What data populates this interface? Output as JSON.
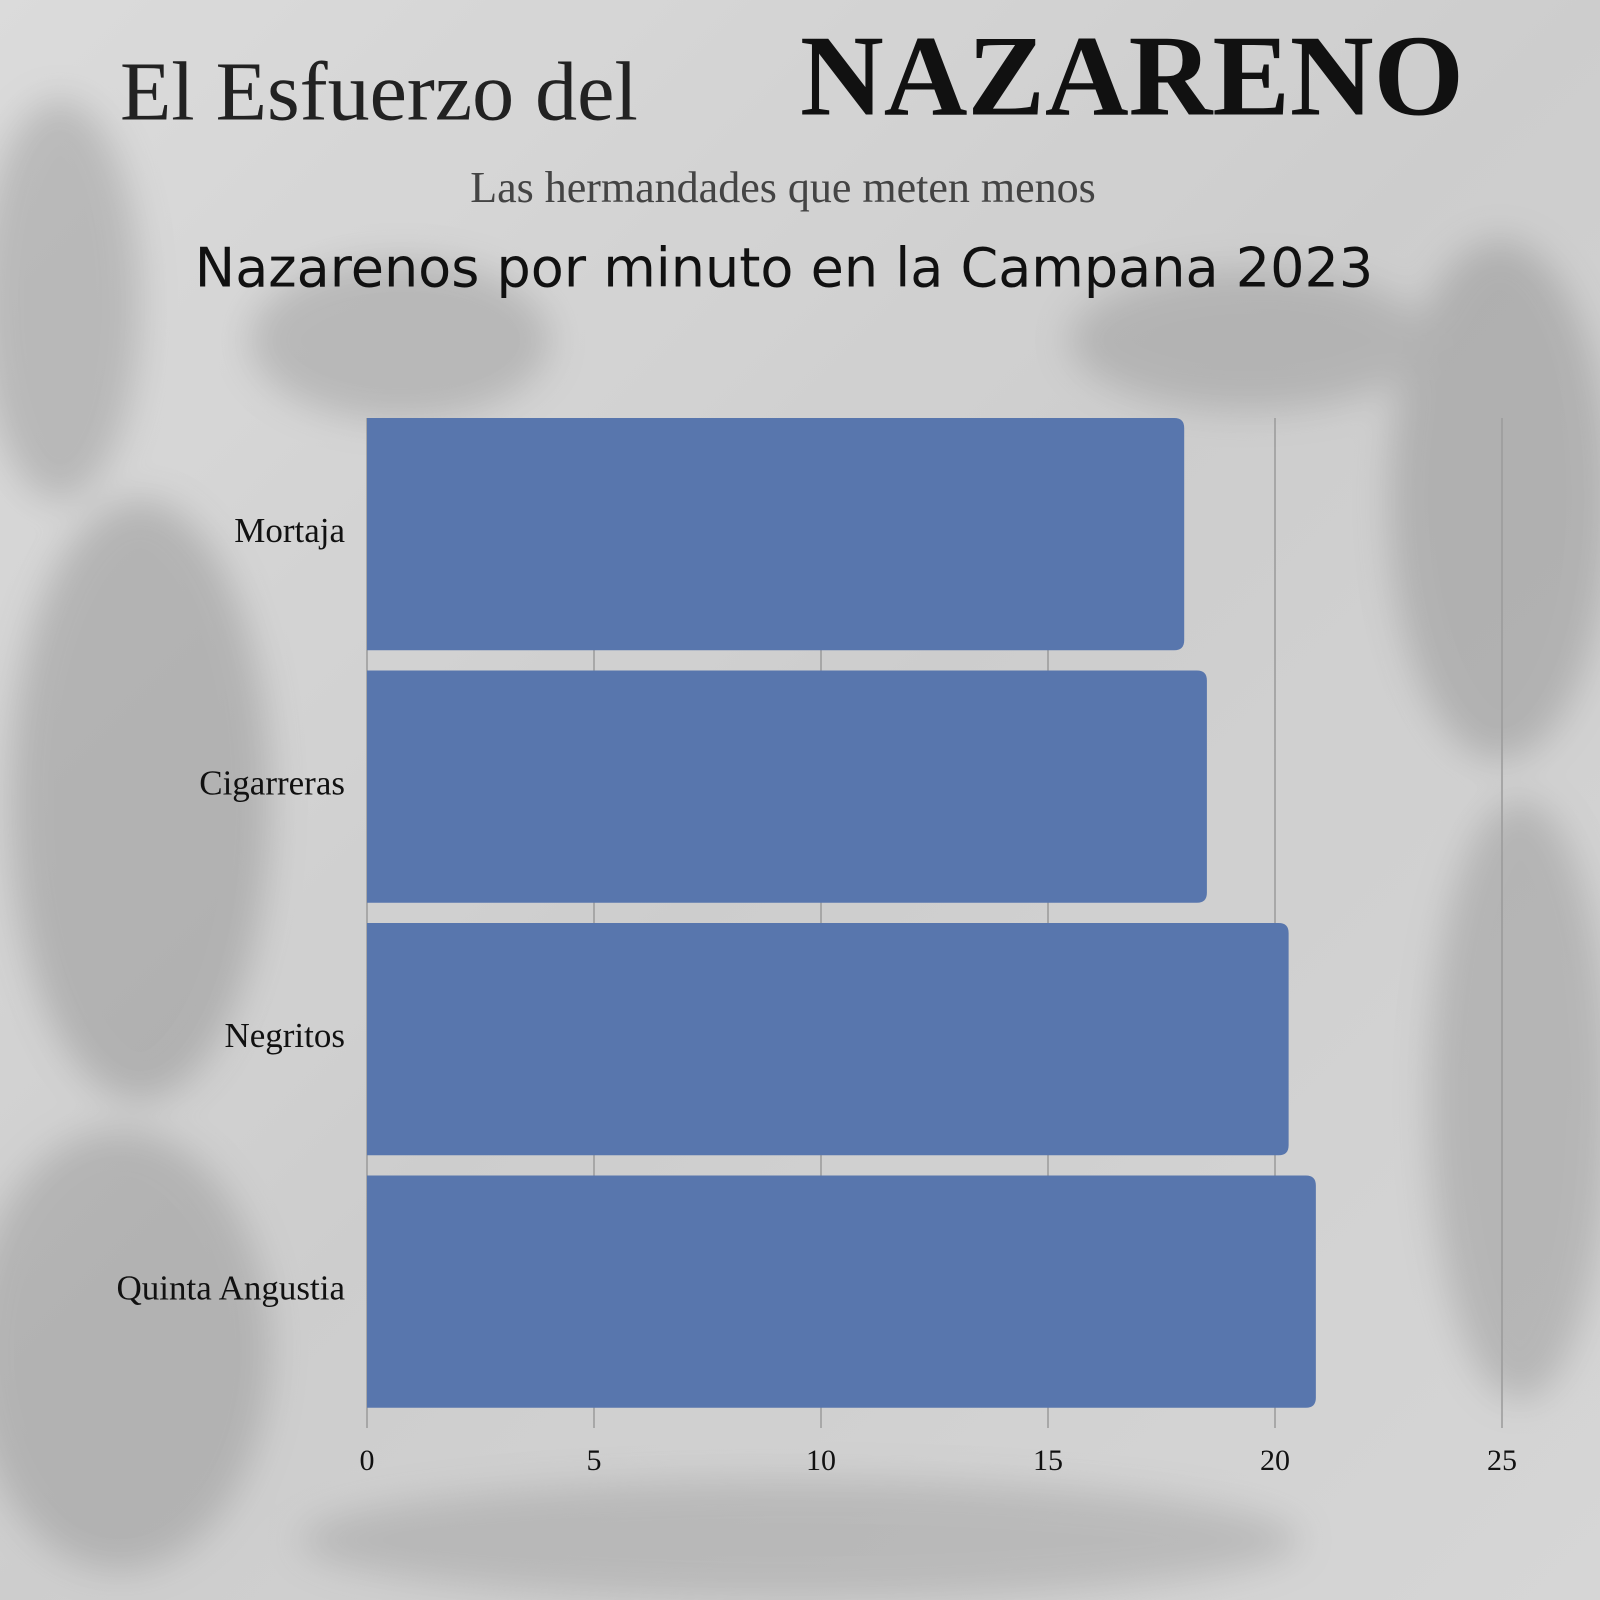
{
  "chart_data": {
    "type": "bar",
    "orientation": "horizontal",
    "title": "El Esfuerzo del",
    "title_emphasis": "NAZARENO",
    "subtitle": "Las hermandades que meten menos",
    "chart_title": "Nazarenos por minuto en la Campana 2023",
    "categories": [
      "Mortaja",
      "Cigarreras",
      "Negritos",
      "Quinta Angustia"
    ],
    "values": [
      18,
      18.5,
      20.3,
      20.9
    ],
    "color": "#5876ad",
    "xlim": [
      0,
      25
    ],
    "xticks": [
      0,
      5,
      10,
      15,
      20,
      25
    ],
    "grid": true
  }
}
